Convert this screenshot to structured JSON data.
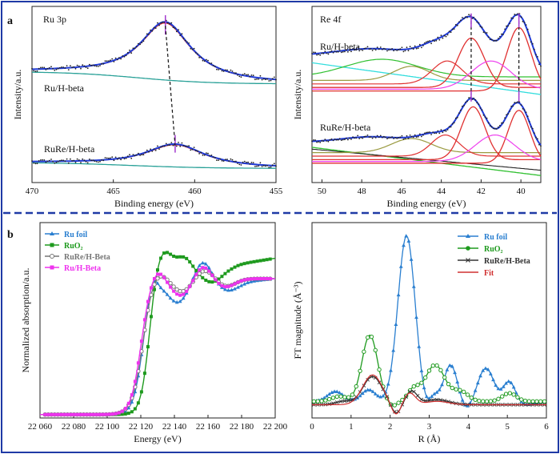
{
  "colors": {
    "frame": "#1f3aa6",
    "fit_blue": "#1f3ad6",
    "red": "#e03030",
    "teal": "#2aa198",
    "purple": "#a43ad0",
    "magenta": "#ee40ee",
    "cyan": "#33dddd",
    "olive": "#9a9a40",
    "green": "#30c030",
    "xas_blue": "#2a7fd0",
    "xas_green": "#1e9a1e",
    "xas_gray": "#777777",
    "xas_magenta": "#ee33ee",
    "xas_red": "#d03030"
  },
  "panel_labels": {
    "a": "a",
    "b": "b"
  },
  "chart_data": [
    {
      "id": "ru3p",
      "type": "line",
      "title": "Ru 3p",
      "xlabel": "Binding energy (eV)",
      "ylabel": "Intensity/a.u.",
      "xlim": [
        470,
        455
      ],
      "reversed_x": true,
      "xticks": [
        "470",
        "465",
        "460",
        "455"
      ],
      "labels": [
        "Ru/H-beta",
        "RuRe/H-beta"
      ],
      "peaks": [
        {
          "label": "Ru/H-beta",
          "x": 461.8
        },
        {
          "label": "RuRe/H-beta",
          "x": 461.2
        }
      ]
    },
    {
      "id": "re4f",
      "type": "line",
      "title": "Re 4f",
      "xlabel": "Binding energy (eV)",
      "ylabel": "Intensity/a.u.",
      "xlim": [
        50.5,
        39
      ],
      "reversed_x": true,
      "xticks": [
        "50",
        "48",
        "46",
        "44",
        "42",
        "40"
      ],
      "labels": [
        "Ru/H-beta",
        "RuRe/H-beta"
      ],
      "peaks": [
        {
          "x": 42.5
        },
        {
          "x": 40.1
        }
      ]
    },
    {
      "id": "xanes",
      "type": "line",
      "title": "",
      "xlabel": "Energy (eV)",
      "ylabel": "Normalized absorption/a.u.",
      "xlim": [
        22060,
        22200
      ],
      "xticks": [
        "22 060",
        "22 080",
        "22 100",
        "22 120",
        "22 140",
        "22 160",
        "22 180",
        "22 200"
      ],
      "series": [
        {
          "name": "Ru foil",
          "color": "#2a7fd0",
          "marker": "triangle"
        },
        {
          "name": "RuO₂",
          "color": "#1e9a1e",
          "marker": "square"
        },
        {
          "name": "RuRe/H-Beta",
          "color": "#777777",
          "marker": "circle"
        },
        {
          "name": "Ru/H-Beta",
          "color": "#ee33ee",
          "marker": "square"
        }
      ]
    },
    {
      "id": "exafs",
      "type": "line",
      "title": "",
      "xlabel": "R (Å)",
      "ylabel": "FT magnitude (Å⁻³)",
      "xlim": [
        0,
        6
      ],
      "xticks": [
        "0",
        "1",
        "2",
        "3",
        "4",
        "5",
        "6"
      ],
      "series": [
        {
          "name": "Ru foil",
          "color": "#2a7fd0",
          "marker": "triangle",
          "peaks": [
            {
              "x": 2.45,
              "y": 1.0
            },
            {
              "x": 3.6,
              "y": 0.22
            },
            {
              "x": 4.5,
              "y": 0.2
            },
            {
              "x": 5.1,
              "y": 0.12
            }
          ]
        },
        {
          "name": "RuO₂",
          "color": "#1e9a1e",
          "marker": "circle",
          "peaks": [
            {
              "x": 1.5,
              "y": 0.4
            },
            {
              "x": 3.1,
              "y": 0.22
            }
          ]
        },
        {
          "name": "RuRe/H-Beta",
          "color": "#333333",
          "marker": "x",
          "peaks": [
            {
              "x": 1.55,
              "y": 0.17
            }
          ]
        },
        {
          "name": "Fit",
          "color": "#d03030",
          "marker": "none",
          "peaks": [
            {
              "x": 1.55,
              "y": 0.18
            }
          ]
        }
      ]
    }
  ]
}
